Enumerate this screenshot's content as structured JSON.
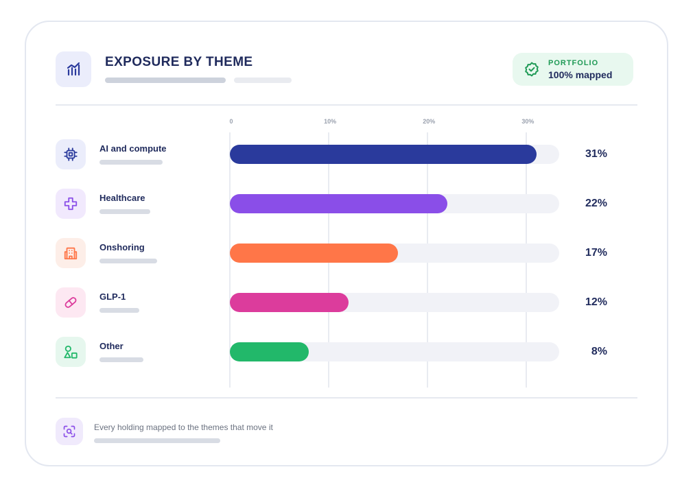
{
  "header": {
    "title": "EXPOSURE BY THEME",
    "icon": "chart-growth-icon",
    "badge": {
      "label": "PORTFOLIO",
      "value": "100% mapped",
      "icon": "verified-badge-icon"
    }
  },
  "footer": {
    "text": "Every holding mapped to the themes that move it",
    "icon": "scan-search-icon"
  },
  "colors": {
    "navy": "#2a3a9c",
    "purple": "#8a4ee8",
    "orange": "#ff7648",
    "pink": "#dc3c9c",
    "green": "#22b86a"
  },
  "chart_data": {
    "type": "bar",
    "orientation": "horizontal",
    "categories": [
      "AI and compute",
      "Healthcare",
      "Onshoring",
      "GLP-1",
      "Other"
    ],
    "values": [
      31,
      22,
      17,
      12,
      8
    ],
    "value_labels": [
      "31%",
      "22%",
      "17%",
      "12%",
      "8%"
    ],
    "unit": "%",
    "xlim": [
      0,
      33.3
    ],
    "ticks": [
      {
        "value": 0,
        "label": "0"
      },
      {
        "value": 10,
        "label": "10%"
      },
      {
        "value": 20,
        "label": "20%"
      },
      {
        "value": 30,
        "label": "30%"
      }
    ],
    "grid": true,
    "bar_colors": [
      "#2a3a9c",
      "#8a4ee8",
      "#ff7648",
      "#dc3c9c",
      "#22b86a"
    ],
    "icons": [
      "cpu-chip-icon",
      "medical-cross-icon",
      "factory-building-icon",
      "pill-icon",
      "shapes-icon"
    ],
    "icon_backgrounds": [
      "#ebedfb",
      "#f1e9fd",
      "#fdeee8",
      "#fde8f2",
      "#e6f7ee"
    ]
  }
}
